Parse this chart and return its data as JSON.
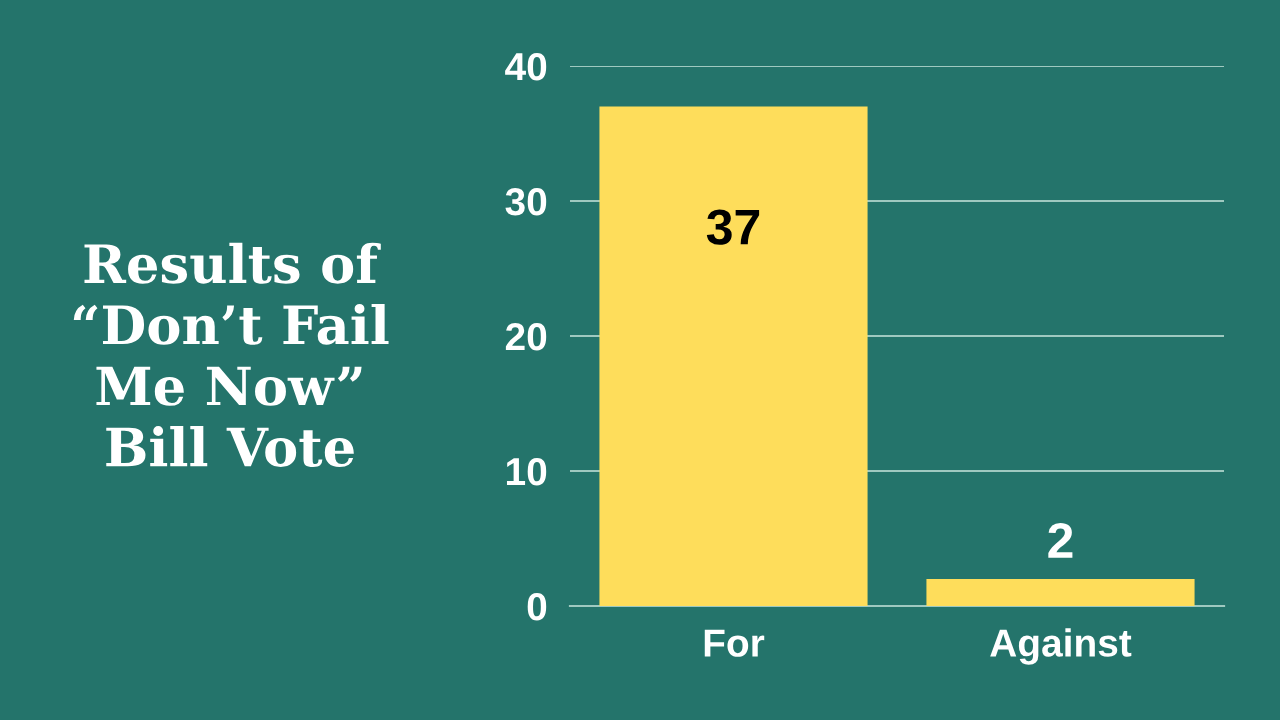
{
  "chart_data": {
    "type": "bar",
    "title": "Results of\n“Don’t Fail\nMe Now”\nBill Vote",
    "categories": [
      "For",
      "Against"
    ],
    "values": [
      37,
      2
    ],
    "color": "#fedd5b",
    "ylim": [
      0,
      40
    ],
    "yticks": [
      0,
      10,
      20,
      30,
      40
    ],
    "grid": "y",
    "data_labels": true
  }
}
